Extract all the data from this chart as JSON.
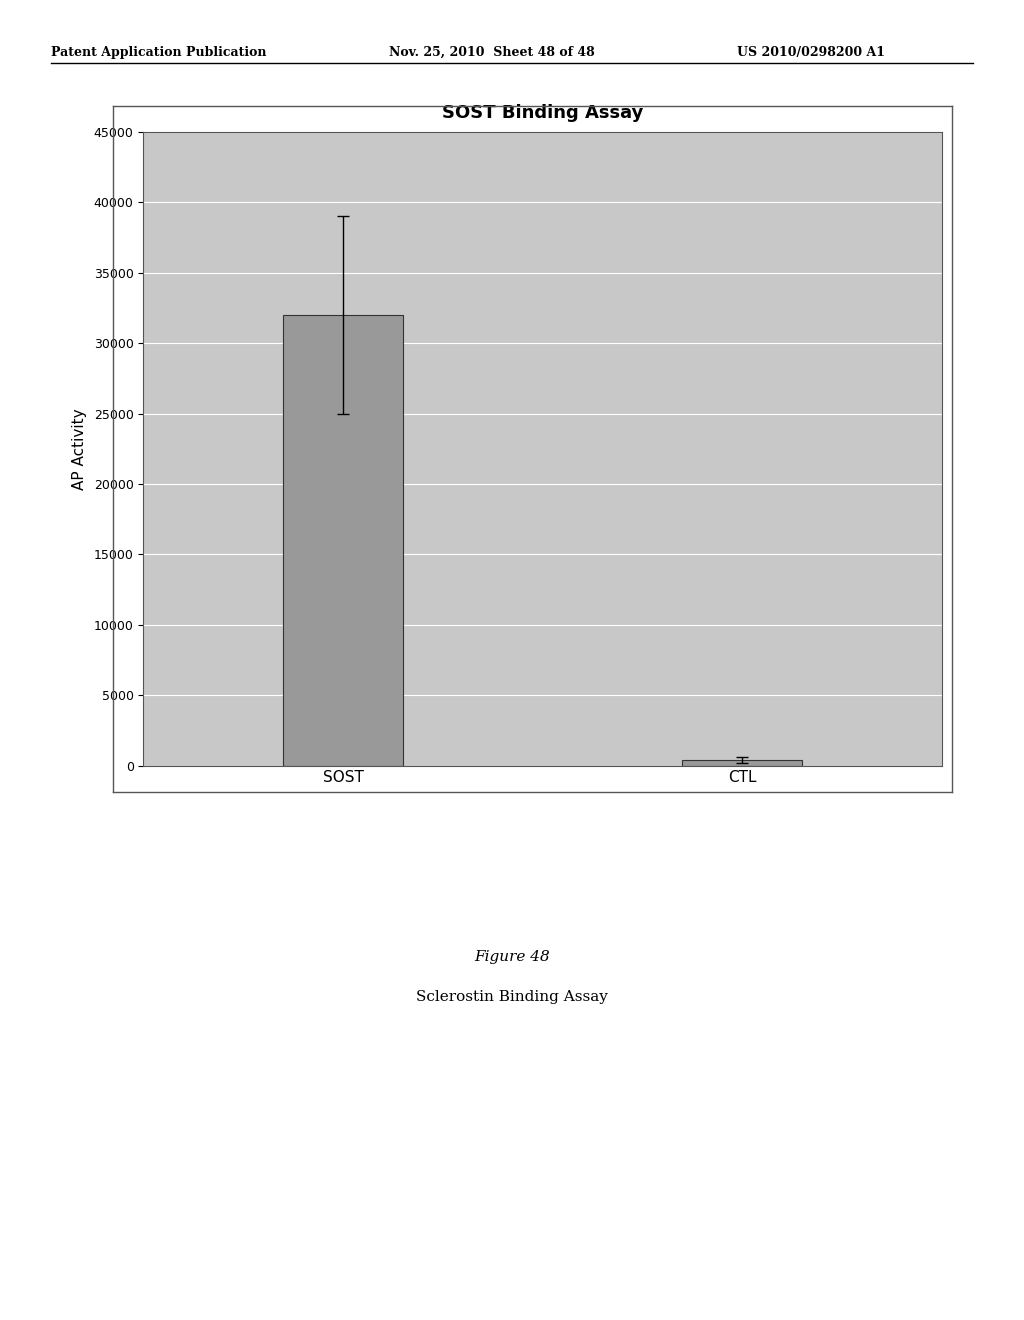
{
  "page_title_left": "Patent Application Publication",
  "page_title_center": "Nov. 25, 2010  Sheet 48 of 48",
  "page_title_right": "US 2010/0298200 A1",
  "chart_title": "SOST Binding Assay",
  "ylabel": "AP Activity",
  "categories": [
    "SOST",
    "CTL"
  ],
  "values": [
    32000,
    400
  ],
  "error_bars": [
    7000,
    200
  ],
  "bar_color": "#999999",
  "bar_edge_color": "#333333",
  "ylim": [
    0,
    45000
  ],
  "yticks": [
    0,
    5000,
    10000,
    15000,
    20000,
    25000,
    30000,
    35000,
    40000,
    45000
  ],
  "plot_bg_color": "#c8c8c8",
  "figure_caption": "Figure 48",
  "figure_subcaption": "Sclerostin Binding Assay",
  "page_bg_color": "#ffffff"
}
